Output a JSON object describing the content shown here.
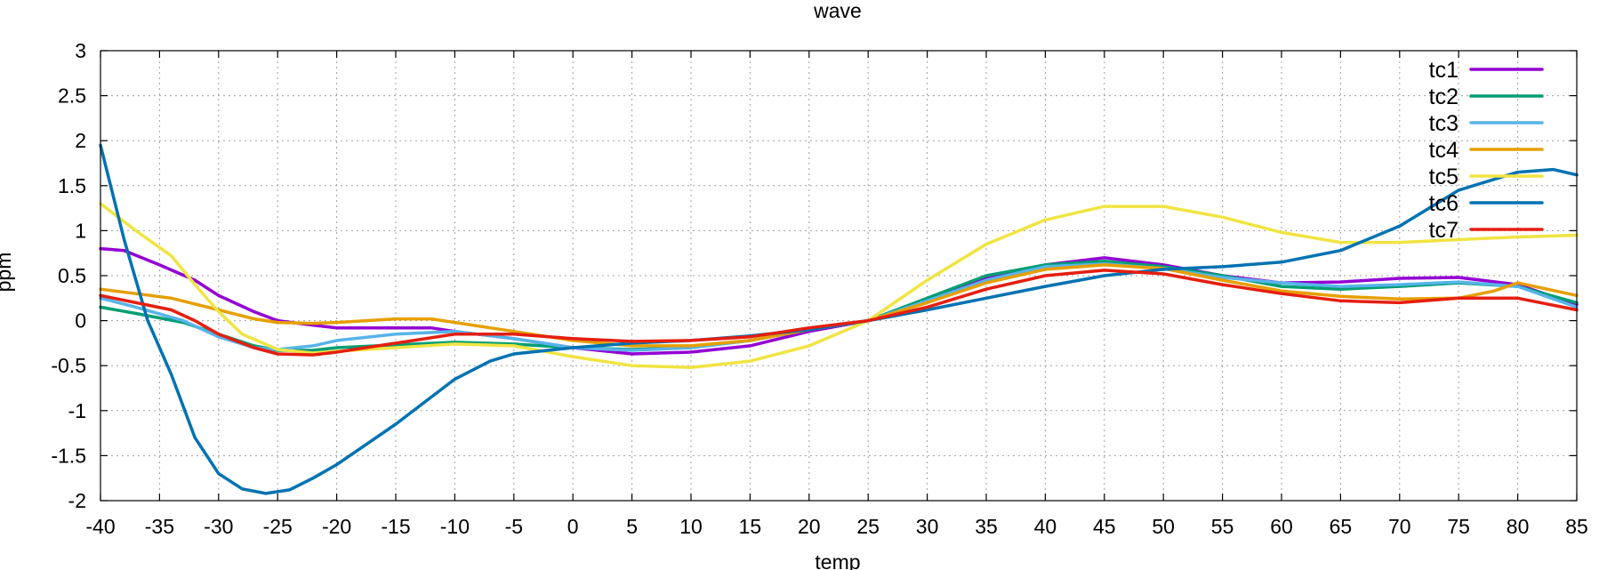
{
  "chart_data": {
    "type": "line",
    "title": "wave",
    "xlabel": "temp",
    "ylabel": "ppm",
    "xlim": [
      -40,
      85
    ],
    "ylim": [
      -2,
      3
    ],
    "grid": true,
    "legend_position": "top-right",
    "x_ticks": [
      -40,
      -35,
      -30,
      -25,
      -20,
      -15,
      -10,
      -5,
      0,
      5,
      10,
      15,
      20,
      25,
      30,
      35,
      40,
      45,
      50,
      55,
      60,
      65,
      70,
      75,
      80,
      85
    ],
    "x_tick_labels": [
      "-40",
      "-35",
      "-30",
      "-25",
      "-20",
      "-15",
      "-10",
      "-5",
      "0",
      "5",
      "10",
      "15",
      "20",
      "25",
      "30",
      "35",
      "40",
      "45",
      "50",
      "55",
      "60",
      "65",
      "70",
      "75",
      "80",
      "85"
    ],
    "y_ticks": [
      -2,
      -1.5,
      -1,
      -0.5,
      0,
      0.5,
      1,
      1.5,
      2,
      2.5,
      3
    ],
    "y_tick_labels": [
      "-2",
      "-1.5",
      "-1",
      "-0.5",
      "0",
      "0.5",
      "1",
      "1.5",
      "2",
      "2.5",
      "3"
    ],
    "series": [
      {
        "name": "tc1",
        "color": "#9400d3",
        "points": [
          [
            -40,
            0.8
          ],
          [
            -38,
            0.78
          ],
          [
            -35,
            0.62
          ],
          [
            -32,
            0.45
          ],
          [
            -30,
            0.28
          ],
          [
            -27,
            0.1
          ],
          [
            -25,
            0.0
          ],
          [
            -22,
            -0.05
          ],
          [
            -20,
            -0.08
          ],
          [
            -15,
            -0.08
          ],
          [
            -12,
            -0.08
          ],
          [
            -10,
            -0.12
          ],
          [
            -5,
            -0.2
          ],
          [
            0,
            -0.3
          ],
          [
            5,
            -0.37
          ],
          [
            10,
            -0.35
          ],
          [
            15,
            -0.28
          ],
          [
            20,
            -0.12
          ],
          [
            25,
            0.0
          ],
          [
            30,
            0.22
          ],
          [
            35,
            0.48
          ],
          [
            40,
            0.62
          ],
          [
            45,
            0.7
          ],
          [
            50,
            0.62
          ],
          [
            55,
            0.5
          ],
          [
            60,
            0.42
          ],
          [
            65,
            0.43
          ],
          [
            70,
            0.47
          ],
          [
            75,
            0.48
          ],
          [
            80,
            0.4
          ],
          [
            85,
            0.18
          ]
        ]
      },
      {
        "name": "tc2",
        "color": "#009e73",
        "points": [
          [
            -40,
            0.15
          ],
          [
            -37,
            0.08
          ],
          [
            -33,
            -0.02
          ],
          [
            -30,
            -0.15
          ],
          [
            -27,
            -0.28
          ],
          [
            -25,
            -0.33
          ],
          [
            -22,
            -0.33
          ],
          [
            -20,
            -0.3
          ],
          [
            -15,
            -0.27
          ],
          [
            -10,
            -0.24
          ],
          [
            -5,
            -0.26
          ],
          [
            0,
            -0.3
          ],
          [
            5,
            -0.32
          ],
          [
            10,
            -0.3
          ],
          [
            15,
            -0.22
          ],
          [
            20,
            -0.1
          ],
          [
            25,
            0.0
          ],
          [
            30,
            0.25
          ],
          [
            35,
            0.5
          ],
          [
            40,
            0.62
          ],
          [
            45,
            0.66
          ],
          [
            50,
            0.6
          ],
          [
            55,
            0.5
          ],
          [
            60,
            0.38
          ],
          [
            65,
            0.35
          ],
          [
            70,
            0.38
          ],
          [
            75,
            0.42
          ],
          [
            80,
            0.38
          ],
          [
            85,
            0.2
          ]
        ]
      },
      {
        "name": "tc3",
        "color": "#56b4e9",
        "points": [
          [
            -40,
            0.25
          ],
          [
            -37,
            0.15
          ],
          [
            -33,
            0.0
          ],
          [
            -30,
            -0.18
          ],
          [
            -27,
            -0.3
          ],
          [
            -25,
            -0.32
          ],
          [
            -22,
            -0.28
          ],
          [
            -20,
            -0.22
          ],
          [
            -15,
            -0.15
          ],
          [
            -10,
            -0.12
          ],
          [
            -5,
            -0.2
          ],
          [
            0,
            -0.3
          ],
          [
            5,
            -0.33
          ],
          [
            10,
            -0.3
          ],
          [
            15,
            -0.22
          ],
          [
            20,
            -0.1
          ],
          [
            25,
            0.0
          ],
          [
            30,
            0.22
          ],
          [
            35,
            0.45
          ],
          [
            40,
            0.6
          ],
          [
            45,
            0.63
          ],
          [
            50,
            0.58
          ],
          [
            55,
            0.48
          ],
          [
            60,
            0.42
          ],
          [
            65,
            0.38
          ],
          [
            70,
            0.4
          ],
          [
            75,
            0.43
          ],
          [
            80,
            0.38
          ],
          [
            85,
            0.15
          ]
        ]
      },
      {
        "name": "tc4",
        "color": "#e69f00",
        "points": [
          [
            -40,
            0.35
          ],
          [
            -37,
            0.3
          ],
          [
            -34,
            0.25
          ],
          [
            -30,
            0.12
          ],
          [
            -27,
            0.02
          ],
          [
            -25,
            -0.02
          ],
          [
            -22,
            -0.03
          ],
          [
            -20,
            -0.02
          ],
          [
            -15,
            0.02
          ],
          [
            -12,
            0.02
          ],
          [
            -10,
            -0.02
          ],
          [
            -5,
            -0.12
          ],
          [
            0,
            -0.22
          ],
          [
            5,
            -0.28
          ],
          [
            10,
            -0.28
          ],
          [
            15,
            -0.22
          ],
          [
            20,
            -0.1
          ],
          [
            25,
            0.0
          ],
          [
            30,
            0.2
          ],
          [
            35,
            0.42
          ],
          [
            40,
            0.57
          ],
          [
            45,
            0.62
          ],
          [
            50,
            0.58
          ],
          [
            55,
            0.45
          ],
          [
            60,
            0.33
          ],
          [
            65,
            0.27
          ],
          [
            70,
            0.24
          ],
          [
            75,
            0.25
          ],
          [
            78,
            0.33
          ],
          [
            80,
            0.42
          ],
          [
            85,
            0.28
          ]
        ]
      },
      {
        "name": "tc5",
        "color": "#f0e442",
        "points": [
          [
            -40,
            1.3
          ],
          [
            -37,
            1.0
          ],
          [
            -34,
            0.72
          ],
          [
            -32,
            0.4
          ],
          [
            -30,
            0.1
          ],
          [
            -28,
            -0.15
          ],
          [
            -25,
            -0.32
          ],
          [
            -22,
            -0.36
          ],
          [
            -20,
            -0.34
          ],
          [
            -15,
            -0.3
          ],
          [
            -10,
            -0.26
          ],
          [
            -5,
            -0.28
          ],
          [
            0,
            -0.4
          ],
          [
            5,
            -0.5
          ],
          [
            10,
            -0.52
          ],
          [
            15,
            -0.45
          ],
          [
            20,
            -0.28
          ],
          [
            25,
            0.0
          ],
          [
            30,
            0.45
          ],
          [
            35,
            0.85
          ],
          [
            40,
            1.12
          ],
          [
            45,
            1.27
          ],
          [
            50,
            1.27
          ],
          [
            55,
            1.15
          ],
          [
            60,
            0.98
          ],
          [
            65,
            0.87
          ],
          [
            70,
            0.87
          ],
          [
            75,
            0.9
          ],
          [
            80,
            0.93
          ],
          [
            85,
            0.95
          ]
        ]
      },
      {
        "name": "tc6",
        "color": "#0072b2",
        "points": [
          [
            -40,
            1.95
          ],
          [
            -38,
            0.9
          ],
          [
            -36,
            0.0
          ],
          [
            -34,
            -0.6
          ],
          [
            -32,
            -1.3
          ],
          [
            -30,
            -1.7
          ],
          [
            -28,
            -1.87
          ],
          [
            -26,
            -1.92
          ],
          [
            -24,
            -1.88
          ],
          [
            -22,
            -1.75
          ],
          [
            -20,
            -1.6
          ],
          [
            -18,
            -1.42
          ],
          [
            -15,
            -1.15
          ],
          [
            -12,
            -0.85
          ],
          [
            -10,
            -0.65
          ],
          [
            -7,
            -0.45
          ],
          [
            -5,
            -0.37
          ],
          [
            0,
            -0.3
          ],
          [
            5,
            -0.25
          ],
          [
            10,
            -0.22
          ],
          [
            15,
            -0.17
          ],
          [
            20,
            -0.1
          ],
          [
            25,
            0.0
          ],
          [
            30,
            0.12
          ],
          [
            35,
            0.25
          ],
          [
            40,
            0.38
          ],
          [
            45,
            0.5
          ],
          [
            50,
            0.57
          ],
          [
            55,
            0.6
          ],
          [
            60,
            0.65
          ],
          [
            65,
            0.78
          ],
          [
            70,
            1.05
          ],
          [
            75,
            1.45
          ],
          [
            80,
            1.65
          ],
          [
            83,
            1.68
          ],
          [
            85,
            1.62
          ]
        ]
      },
      {
        "name": "tc7",
        "color": "#e51e10",
        "points": [
          [
            -40,
            0.28
          ],
          [
            -37,
            0.2
          ],
          [
            -34,
            0.12
          ],
          [
            -32,
            0.0
          ],
          [
            -30,
            -0.15
          ],
          [
            -27,
            -0.3
          ],
          [
            -25,
            -0.37
          ],
          [
            -22,
            -0.38
          ],
          [
            -20,
            -0.35
          ],
          [
            -15,
            -0.25
          ],
          [
            -10,
            -0.15
          ],
          [
            -5,
            -0.15
          ],
          [
            0,
            -0.2
          ],
          [
            5,
            -0.23
          ],
          [
            10,
            -0.22
          ],
          [
            15,
            -0.18
          ],
          [
            20,
            -0.08
          ],
          [
            25,
            0.0
          ],
          [
            30,
            0.15
          ],
          [
            35,
            0.35
          ],
          [
            40,
            0.5
          ],
          [
            45,
            0.56
          ],
          [
            50,
            0.52
          ],
          [
            55,
            0.4
          ],
          [
            60,
            0.3
          ],
          [
            65,
            0.22
          ],
          [
            70,
            0.2
          ],
          [
            75,
            0.25
          ],
          [
            80,
            0.25
          ],
          [
            85,
            0.12
          ]
        ]
      }
    ]
  }
}
